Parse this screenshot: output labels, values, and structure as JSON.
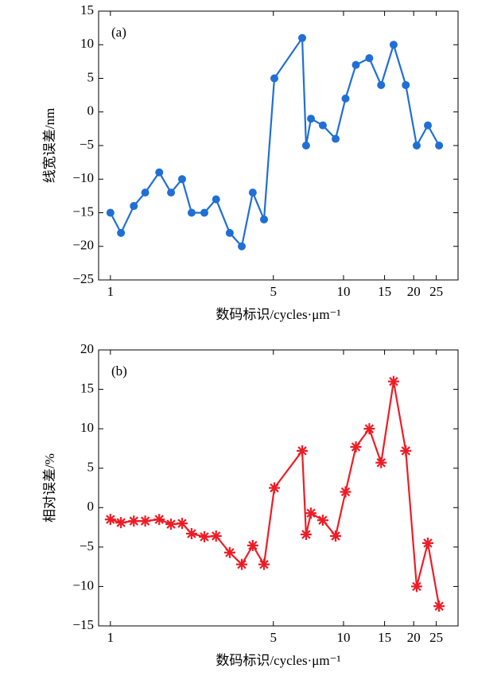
{
  "chart_data": [
    {
      "type": "line",
      "annotation": "(a)",
      "ylabel": "线宽误差/nm",
      "xlabel": "数码标识/cycles·μm⁻¹",
      "xscale": "log",
      "marker": "circle",
      "x": [
        1.0,
        1.11,
        1.26,
        1.41,
        1.62,
        1.82,
        2.03,
        2.23,
        2.53,
        2.84,
        3.25,
        3.66,
        4.08,
        4.56,
        5.05,
        6.65,
        6.91,
        7.25,
        8.15,
        9.25,
        10.2,
        11.3,
        12.9,
        14.5,
        16.4,
        18.5,
        20.6,
        23.0,
        25.7
      ],
      "series": [
        {
          "name": "线宽误差",
          "color": "#1f6fd6",
          "values": [
            -15,
            -18,
            -14,
            -12,
            -9,
            -12,
            -10,
            -15,
            -15,
            -13,
            -18,
            -20,
            -12,
            -16,
            5,
            11,
            -5,
            -1,
            -2,
            -4,
            2,
            7,
            8,
            4,
            10,
            4,
            -5,
            -2,
            -5
          ]
        }
      ],
      "xlim": [
        0.89,
        31
      ],
      "xticks": [
        1,
        5,
        10,
        15,
        20,
        25
      ],
      "ylim": [
        -25,
        15
      ],
      "yticks": [
        {
          "value": -25,
          "label": "−25"
        },
        {
          "value": -20,
          "label": "−20"
        },
        {
          "value": -15,
          "label": "−15"
        },
        {
          "value": -10,
          "label": "−10"
        },
        {
          "value": -5,
          "label": "−5"
        },
        0,
        5,
        10,
        15
      ]
    },
    {
      "type": "line",
      "annotation": "(b)",
      "ylabel": "相对误差/%",
      "xlabel": "数码标识/cycles·μm⁻¹",
      "xscale": "log",
      "marker": "asterisk",
      "x": [
        1.0,
        1.11,
        1.26,
        1.41,
        1.62,
        1.82,
        2.03,
        2.23,
        2.53,
        2.84,
        3.25,
        3.66,
        4.08,
        4.56,
        5.05,
        6.65,
        6.91,
        7.25,
        8.15,
        9.25,
        10.2,
        11.3,
        12.9,
        14.5,
        16.4,
        18.5,
        20.6,
        23.0,
        25.7
      ],
      "series": [
        {
          "name": "相对误差",
          "color": "#ee1c25",
          "values": [
            -1.5,
            -1.9,
            -1.7,
            -1.7,
            -1.5,
            -2.1,
            -2,
            -3.3,
            -3.7,
            -3.6,
            -5.7,
            -7.2,
            -4.8,
            -7.2,
            2.5,
            7.2,
            -3.4,
            -0.7,
            -1.6,
            -3.6,
            2,
            7.7,
            10,
            5.7,
            16,
            7.2,
            -10,
            -4.5,
            -12.5
          ]
        }
      ],
      "xlim": [
        0.89,
        31
      ],
      "xticks": [
        1,
        5,
        10,
        15,
        20,
        25
      ],
      "ylim": [
        -15,
        20
      ],
      "yticks": [
        {
          "value": -15,
          "label": "−15"
        },
        {
          "value": -10,
          "label": "−10"
        },
        {
          "value": -5,
          "label": "−5"
        },
        0,
        5,
        10,
        15,
        20
      ]
    }
  ]
}
